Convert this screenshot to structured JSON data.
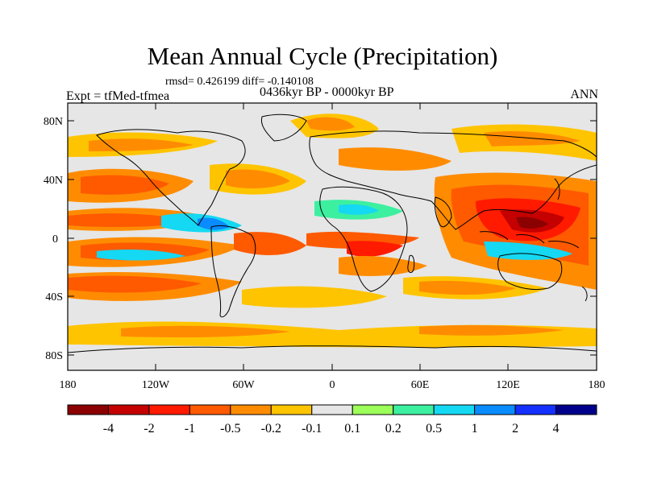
{
  "title": "Mean Annual Cycle (Precipitation)",
  "stats": "rmsd= 0.426199 diff= -0.140108",
  "experiment": "Expt = tfMed-tfmea",
  "period": "0436kyr BP - 0000kyr BP",
  "season": "ANN",
  "axes": {
    "lat_ticks": [
      "80N",
      "40N",
      "0",
      "40S",
      "80S"
    ],
    "lon_ticks": [
      "180",
      "120W",
      "60W",
      "0",
      "60E",
      "120E",
      "180"
    ]
  },
  "colorbar": {
    "labels": [
      "-4",
      "-2",
      "-1",
      "-0.5",
      "-0.2",
      "-0.1",
      "0.1",
      "0.2",
      "0.5",
      "1",
      "2",
      "4"
    ],
    "colors": [
      "#8b0000",
      "#c40000",
      "#ff1a00",
      "#ff5a00",
      "#ff8c00",
      "#ffc400",
      "#e6e6e6",
      "#9dff5a",
      "#3cf0a0",
      "#15d8f2",
      "#0a8cff",
      "#1430ff",
      "#00008b"
    ]
  }
}
